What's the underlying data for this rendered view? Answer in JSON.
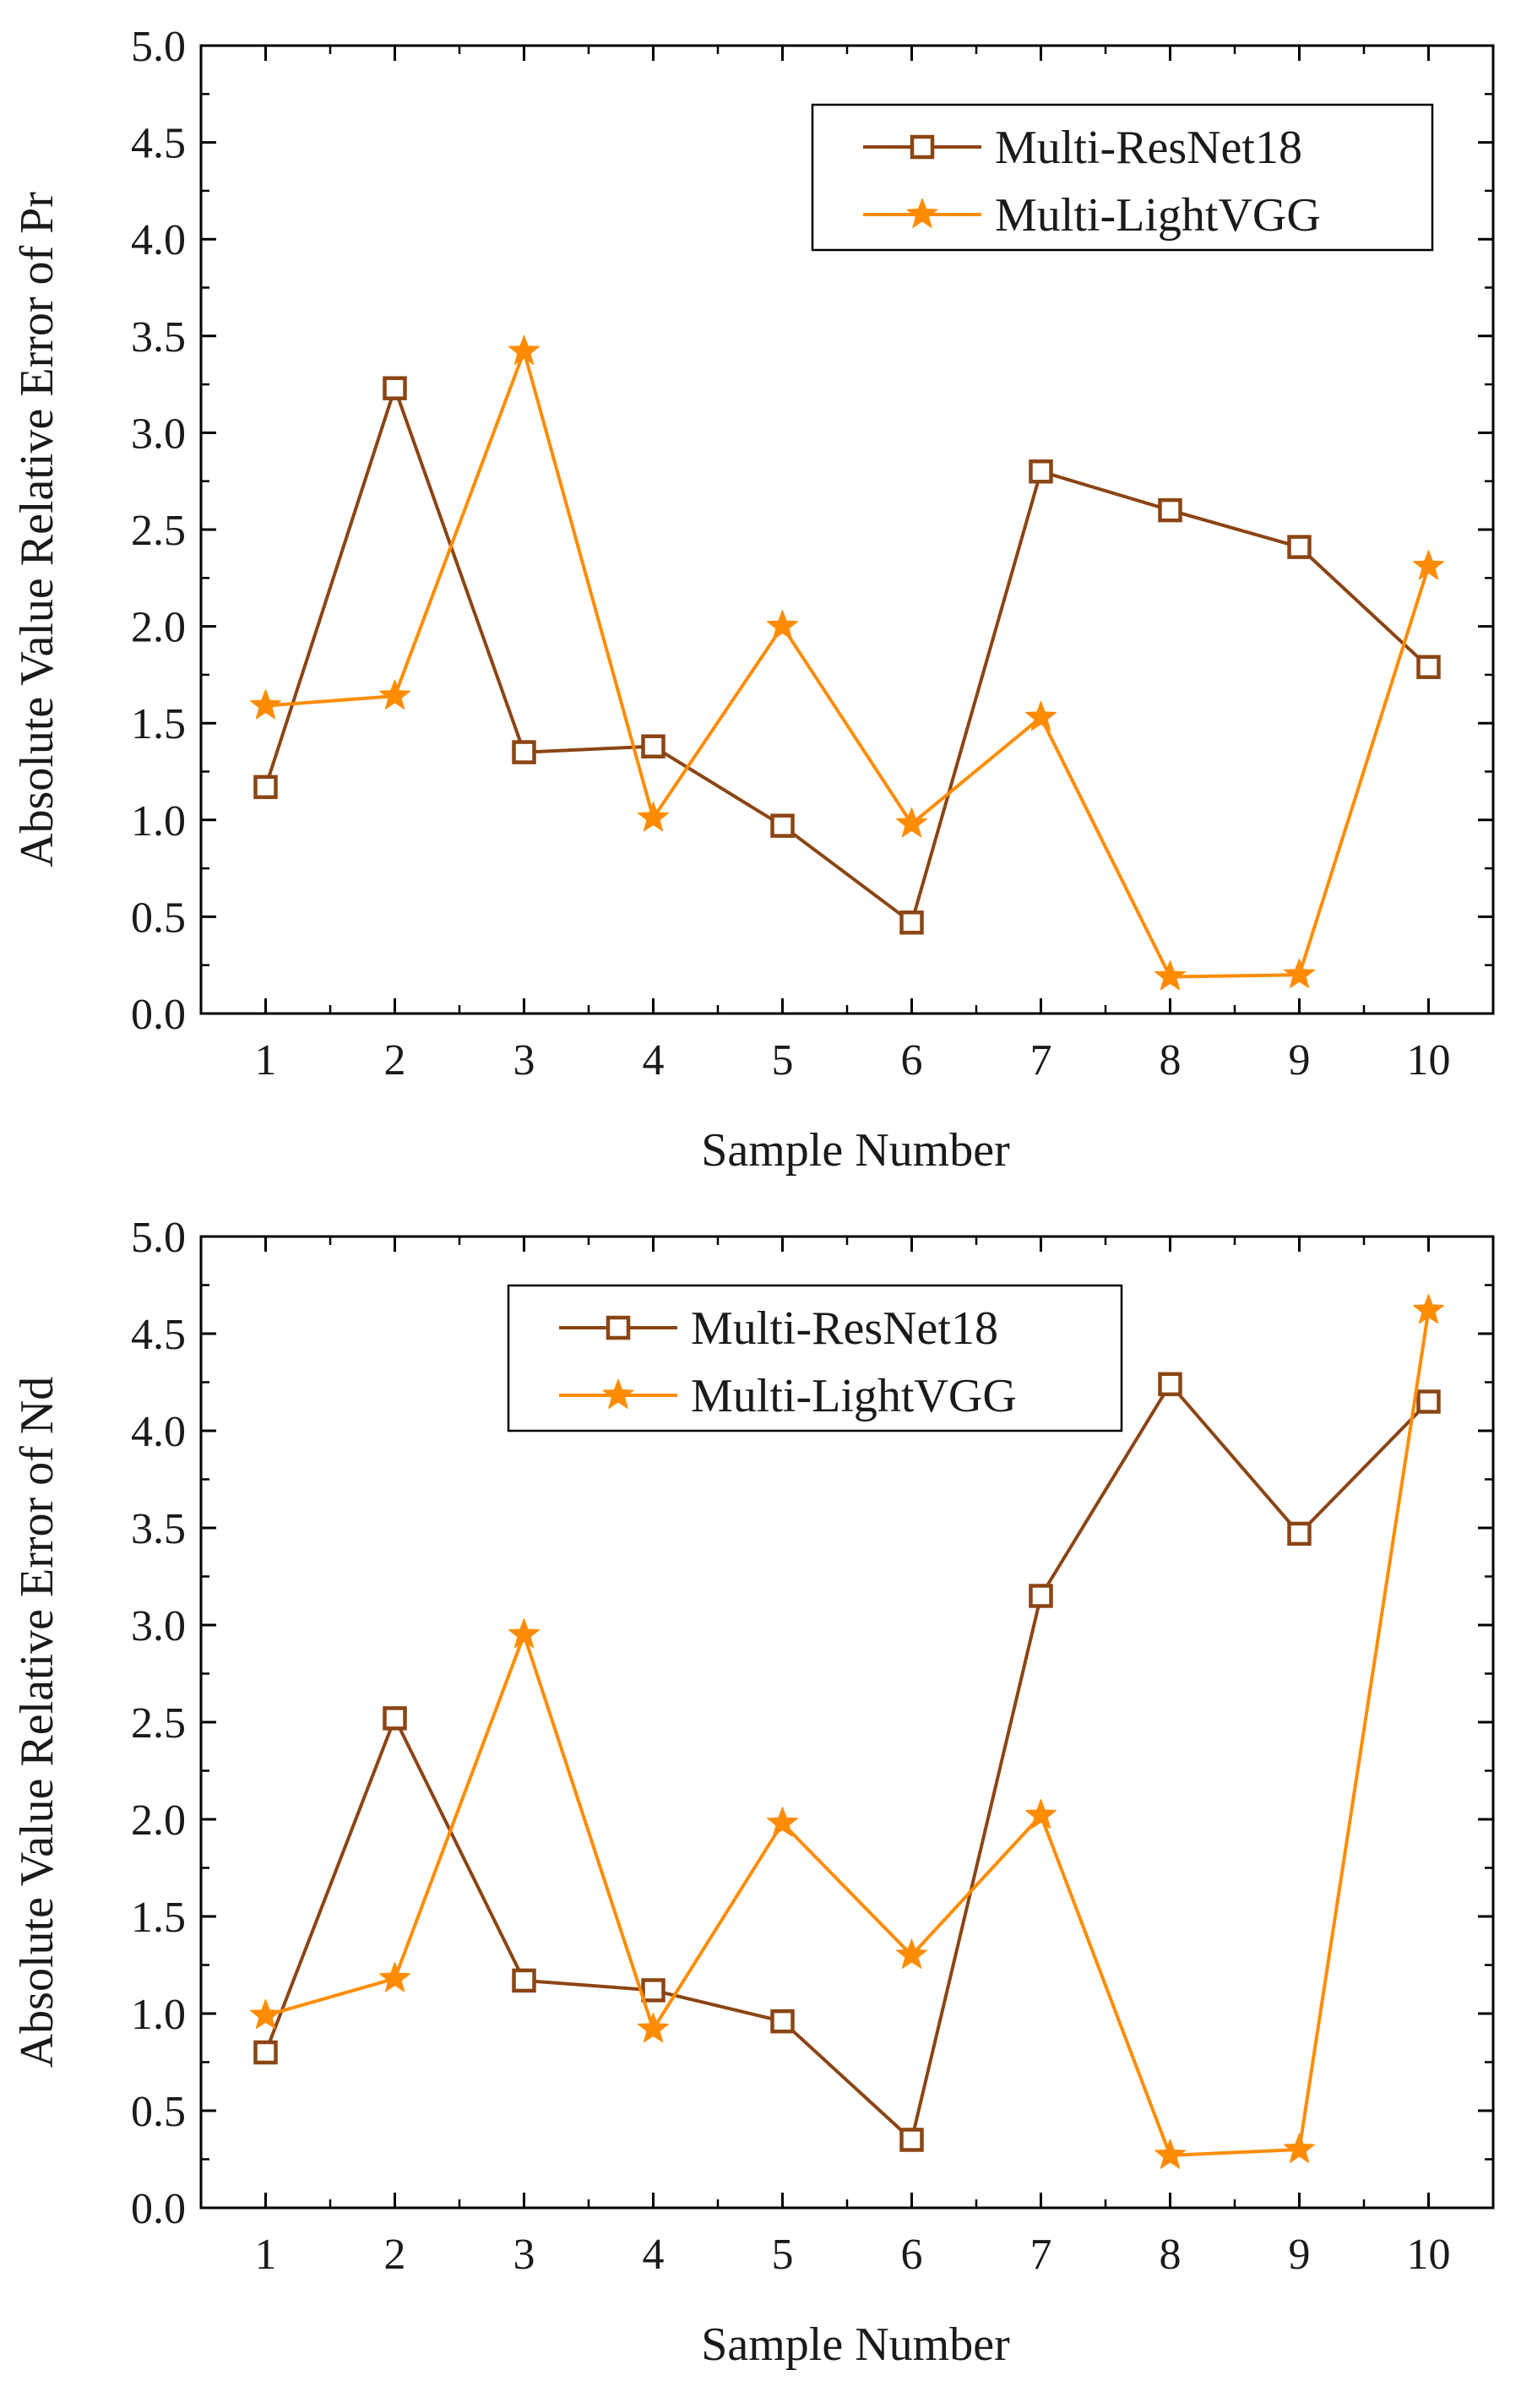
{
  "chart_data": [
    {
      "type": "line",
      "categories": [
        "1",
        "2",
        "3",
        "4",
        "5",
        "6",
        "7",
        "8",
        "9",
        "10"
      ],
      "x": [
        1,
        2,
        3,
        4,
        5,
        6,
        7,
        8,
        9,
        10
      ],
      "xlabel": "Sample Number",
      "ylabel": "Absolute Value Relative Error of Pr",
      "ylim": [
        0,
        5.0
      ],
      "yticks": [
        "0.0",
        "0.5",
        "1.0",
        "1.5",
        "2.0",
        "2.5",
        "3.0",
        "3.5",
        "4.0",
        "4.5",
        "5.0"
      ],
      "grid": false,
      "legend_position": "top-right",
      "series": [
        {
          "name": "Multi-ResNet18",
          "marker": "square",
          "color": "#8B4513",
          "values": [
            1.17,
            3.23,
            1.35,
            1.38,
            0.97,
            0.47,
            2.8,
            2.6,
            2.41,
            1.79
          ]
        },
        {
          "name": "Multi-LightVGG",
          "marker": "star",
          "color": "#FF8C00",
          "values": [
            1.59,
            1.64,
            3.42,
            1.01,
            2.0,
            0.98,
            1.53,
            0.19,
            0.2,
            2.31
          ]
        }
      ]
    },
    {
      "type": "line",
      "categories": [
        "1",
        "2",
        "3",
        "4",
        "5",
        "6",
        "7",
        "8",
        "9",
        "10"
      ],
      "x": [
        1,
        2,
        3,
        4,
        5,
        6,
        7,
        8,
        9,
        10
      ],
      "xlabel": "Sample Number",
      "ylabel": "Absolute Value Relative Error of Nd",
      "ylim": [
        0,
        5.0
      ],
      "yticks": [
        "0.0",
        "0.5",
        "1.0",
        "1.5",
        "2.0",
        "2.5",
        "3.0",
        "3.5",
        "4.0",
        "4.5",
        "5.0"
      ],
      "grid": false,
      "legend_position": "top-left",
      "series": [
        {
          "name": "Multi-ResNet18",
          "marker": "square",
          "color": "#8B4513",
          "values": [
            0.8,
            2.52,
            1.17,
            1.12,
            0.96,
            0.35,
            3.15,
            4.24,
            3.47,
            4.15
          ]
        },
        {
          "name": "Multi-LightVGG",
          "marker": "star",
          "color": "#FF8C00",
          "values": [
            0.99,
            1.18,
            2.95,
            0.92,
            1.98,
            1.3,
            2.02,
            0.27,
            0.3,
            4.62
          ]
        }
      ]
    }
  ]
}
